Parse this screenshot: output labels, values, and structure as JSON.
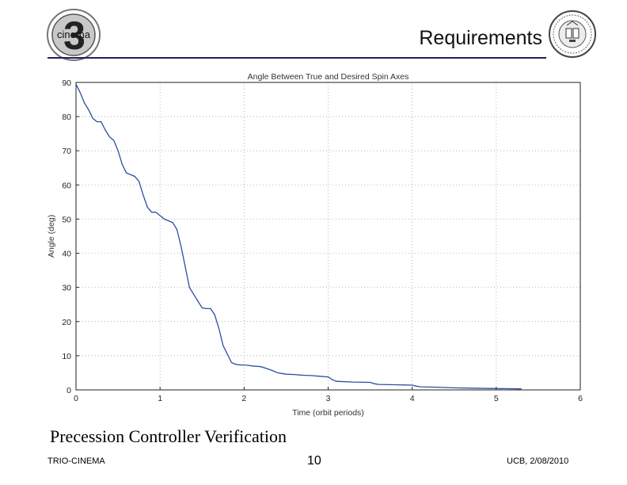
{
  "header": {
    "title": "Requirements",
    "logo_left_text": "cinema",
    "logo_left_numeral": "3",
    "accent_color": "#202060"
  },
  "chart_data": {
    "type": "line",
    "title": "Angle Between True and Desired Spin Axes",
    "xlabel": "Time (orbit periods)",
    "ylabel": "Angle (deg)",
    "xlim": [
      0,
      6
    ],
    "ylim": [
      0,
      90
    ],
    "xticks": [
      0,
      1,
      2,
      3,
      4,
      5,
      6
    ],
    "yticks": [
      0,
      10,
      20,
      30,
      40,
      50,
      60,
      70,
      80,
      90
    ],
    "grid": true,
    "series": [
      {
        "name": "angle",
        "color": "#2a4fa0",
        "x": [
          0.0,
          0.05,
          0.1,
          0.15,
          0.2,
          0.25,
          0.3,
          0.35,
          0.4,
          0.45,
          0.5,
          0.55,
          0.6,
          0.65,
          0.7,
          0.75,
          0.8,
          0.85,
          0.9,
          0.95,
          1.0,
          1.05,
          1.1,
          1.15,
          1.2,
          1.25,
          1.3,
          1.35,
          1.4,
          1.45,
          1.5,
          1.55,
          1.6,
          1.65,
          1.7,
          1.75,
          1.8,
          1.85,
          1.9,
          1.95,
          2.0,
          2.05,
          2.1,
          2.2,
          2.3,
          2.4,
          2.45,
          2.5,
          2.6,
          2.7,
          2.8,
          2.9,
          3.0,
          3.05,
          3.1,
          3.3,
          3.5,
          3.55,
          3.6,
          3.8,
          4.0,
          4.05,
          4.1,
          4.3,
          4.5,
          4.7,
          5.0,
          5.3
        ],
        "y": [
          89.5,
          87,
          84,
          82,
          79.5,
          78.5,
          78.5,
          76,
          74,
          73,
          70,
          66,
          63.5,
          63,
          62.5,
          61,
          57,
          53.5,
          52,
          52,
          51,
          50,
          49.5,
          49,
          47,
          42,
          36,
          30,
          28,
          26,
          24,
          23.8,
          23.8,
          22,
          18,
          13,
          10.5,
          8,
          7.5,
          7.3,
          7.3,
          7.2,
          7,
          6.8,
          6,
          5,
          4.8,
          4.6,
          4.5,
          4.3,
          4.2,
          4.0,
          3.8,
          3.0,
          2.5,
          2.3,
          2.2,
          1.8,
          1.6,
          1.5,
          1.4,
          1.1,
          0.9,
          0.8,
          0.6,
          0.5,
          0.4,
          0.3
        ]
      }
    ]
  },
  "caption": "Precession Controller Verification",
  "footer": {
    "left": "TRIO-CINEMA",
    "center": "10",
    "right": "UCB, 2/08/2010"
  }
}
